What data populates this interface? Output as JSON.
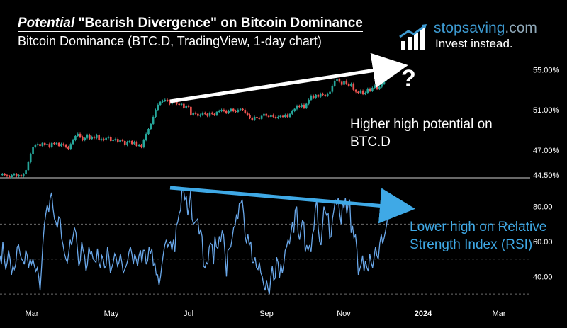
{
  "header": {
    "title_em": "Potential",
    "title_rest": " \"Bearish Divergence\" on Bitcoin Dominance",
    "subtitle": "Bitcoin Dominance (BTC.D, TradingView, 1-day chart)"
  },
  "brand": {
    "name_main": "stopsaving",
    "name_tld": ".com",
    "tagline": "Invest instead."
  },
  "annotations": {
    "price_note": "Higher high potential on BTC.D",
    "rsi_note": "Lower high on Relative Strength Index (RSI)",
    "question": "?"
  },
  "colors": {
    "background": "#000000",
    "candle_up": "#26a69a",
    "candle_down": "#ef5350",
    "rsi_line": "#6aa8ea",
    "rsi_arrow": "#3fa9e6",
    "price_arrow": "#ffffff",
    "grid": "#555555",
    "axis_text": "#ffffff"
  },
  "chart_data": [
    {
      "type": "line",
      "series": [
        {
          "values": [
            44.5,
            44.6,
            44.5,
            44.4,
            44.3,
            44.5,
            44.6,
            44.4,
            44.5,
            44.4,
            44.6,
            45.0,
            45.8,
            46.6,
            47.3,
            47.5,
            47.6,
            47.4,
            47.7,
            47.5,
            47.6,
            47.3,
            47.7,
            47.6,
            47.7,
            47.4,
            47.6,
            47.5,
            47.3,
            47.1,
            47.6,
            48.0,
            48.4,
            48.6,
            48.3,
            48.0,
            48.2,
            48.5,
            48.1,
            48.3,
            48.2,
            48.5,
            48.0,
            48.1,
            48.0,
            48.2,
            48.3,
            47.9,
            48.0,
            48.1,
            47.8,
            48.0,
            47.9,
            47.5,
            47.8,
            47.9,
            47.6,
            47.8,
            47.4,
            47.5,
            47.3,
            48.0,
            48.6,
            49.1,
            49.6,
            50.3,
            51.0,
            51.5,
            51.8,
            51.9,
            52.0,
            51.9,
            51.6,
            51.9,
            51.8,
            51.6,
            51.5,
            51.6,
            51.2,
            51.4,
            51.3,
            50.5,
            50.7,
            50.6,
            50.4,
            50.5,
            50.7,
            50.6,
            50.4,
            50.7,
            50.6,
            50.5,
            50.8,
            50.9,
            51.0,
            50.9,
            50.7,
            50.9,
            51.1,
            50.9,
            50.8,
            51.0,
            51.1,
            51.0,
            50.7,
            50.5,
            50.2,
            50.0,
            50.3,
            50.2,
            50.1,
            50.4,
            50.6,
            50.4,
            50.3,
            50.5,
            50.3,
            50.2,
            50.3,
            50.4,
            50.3,
            50.5,
            50.3,
            50.6,
            50.9,
            51.1,
            51.4,
            51.3,
            51.5,
            51.2,
            51.6,
            52.0,
            52.4,
            52.2,
            52.5,
            52.3,
            52.6,
            52.5,
            52.4,
            52.6,
            52.8,
            53.4,
            53.9,
            54.1,
            53.8,
            53.5,
            53.9,
            53.6,
            53.4,
            53.6,
            53.0,
            52.8,
            52.7,
            52.9,
            52.6,
            52.7,
            53.1,
            52.9,
            53.2,
            53.4,
            53.1,
            53.3,
            53.6,
            54.0,
            54.6,
            55.2,
            55.7
          ]
        }
      ],
      "y_ticks": [
        "55.00%",
        "51.00%",
        "47.00%",
        "44.50%"
      ],
      "ylim": [
        44.3,
        56.3
      ]
    },
    {
      "type": "line",
      "series": [
        {
          "values": [
            52,
            47,
            60,
            50,
            44,
            48,
            55,
            50,
            41,
            46,
            44,
            47,
            57,
            58,
            53,
            50,
            49,
            47,
            55,
            52,
            45,
            50,
            47,
            50,
            46,
            43,
            45,
            40,
            32,
            45,
            60,
            70,
            76,
            81,
            77,
            85,
            88,
            79,
            73,
            71,
            68,
            74,
            73,
            62,
            58,
            53,
            50,
            48,
            54,
            61,
            58,
            63,
            68,
            65,
            56,
            46,
            49,
            60,
            55,
            52,
            43,
            47,
            57,
            53,
            54,
            50,
            49,
            48,
            56,
            48,
            45,
            52,
            50,
            45,
            46,
            57,
            51,
            42,
            45,
            48,
            53,
            51,
            46,
            48,
            53,
            48,
            42,
            44,
            46,
            49,
            54,
            57,
            53,
            47,
            53,
            50,
            46,
            52,
            55,
            48,
            55,
            55,
            47,
            49,
            57,
            53,
            56,
            46,
            48,
            41,
            41,
            35,
            40,
            47,
            53,
            58,
            61,
            57,
            59,
            60,
            55,
            61,
            54,
            69,
            71,
            76,
            78,
            90,
            90,
            84,
            86,
            75,
            80,
            89,
            73,
            70,
            71,
            72,
            73,
            64,
            67,
            63,
            46,
            45,
            48,
            47,
            57,
            59,
            58,
            47,
            63,
            57,
            56,
            63,
            60,
            66,
            64,
            53,
            40,
            55,
            56,
            57,
            62,
            68,
            69,
            75,
            73,
            82,
            82,
            84,
            76,
            63,
            59,
            64,
            58,
            60,
            48,
            48,
            51,
            45,
            44,
            48,
            42,
            40,
            35,
            32,
            38,
            33,
            30,
            40,
            46,
            38,
            39,
            51,
            48,
            39,
            47,
            42,
            47,
            55,
            57,
            61,
            59,
            65,
            71,
            65,
            78,
            80,
            65,
            61,
            67,
            72,
            71,
            54,
            58,
            55,
            58,
            54,
            64,
            67,
            79,
            84,
            68,
            60,
            58,
            69,
            80,
            77,
            75,
            76,
            62,
            63,
            73,
            78,
            84,
            81,
            85,
            76,
            70,
            83,
            79,
            85,
            76,
            82,
            84,
            65,
            69,
            62,
            64,
            56,
            41,
            44,
            47,
            52,
            43,
            49,
            45,
            43,
            53,
            48,
            45,
            51,
            57,
            52,
            50,
            59,
            64,
            59,
            62,
            66,
            71,
            82,
            80
          ]
        }
      ],
      "y_ticks": [
        "80.00",
        "60.00",
        "40.00"
      ],
      "ylim": [
        28,
        92
      ]
    }
  ],
  "x_axis": {
    "labels": [
      "Mar",
      "May",
      "Jul",
      "Sep",
      "Nov",
      "2024",
      "Mar"
    ]
  }
}
